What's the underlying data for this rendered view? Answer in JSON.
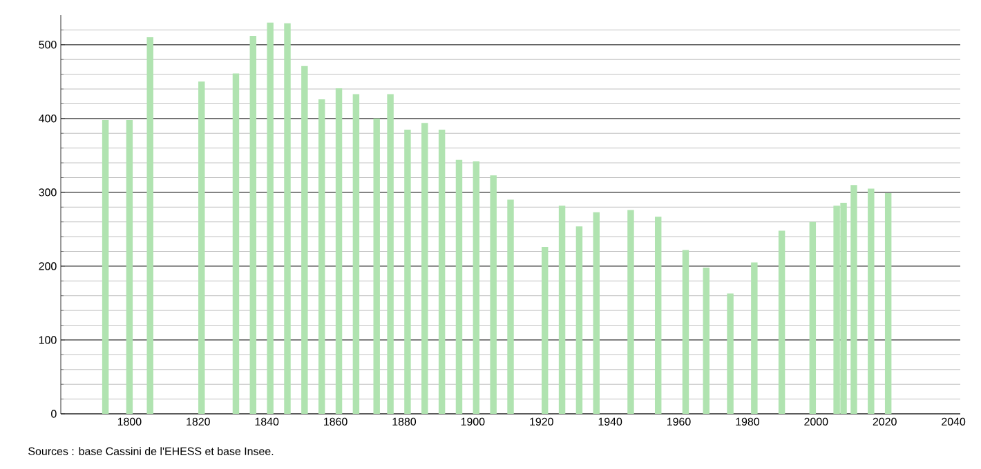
{
  "chart_data": {
    "type": "bar",
    "x": [
      1793,
      1800,
      1806,
      1821,
      1831,
      1836,
      1841,
      1846,
      1851,
      1856,
      1861,
      1866,
      1872,
      1876,
      1881,
      1886,
      1891,
      1896,
      1901,
      1906,
      1911,
      1921,
      1926,
      1931,
      1936,
      1946,
      1954,
      1962,
      1968,
      1975,
      1982,
      1990,
      1999,
      2006,
      2008,
      2011,
      2016,
      2021
    ],
    "values": [
      398,
      398,
      510,
      450,
      461,
      512,
      530,
      529,
      471,
      426,
      441,
      433,
      400,
      433,
      385,
      394,
      385,
      344,
      342,
      323,
      290,
      226,
      282,
      254,
      273,
      276,
      267,
      222,
      198,
      163,
      205,
      248,
      260,
      282,
      286,
      310,
      305,
      299
    ],
    "color": "#b0e3b0",
    "xlim": [
      1780,
      2042
    ],
    "xticks": [
      1800,
      1820,
      1840,
      1860,
      1880,
      1900,
      1920,
      1940,
      1960,
      1980,
      2000,
      2020,
      2040
    ],
    "ylim": [
      0,
      540
    ],
    "yticks": [
      0,
      {
        "value": 20,
        "label": null
      },
      {
        "value": 40,
        "label": null
      },
      {
        "value": 60,
        "label": null
      },
      {
        "value": 80,
        "label": null
      },
      100,
      {
        "value": 120,
        "label": null
      },
      {
        "value": 140,
        "label": null
      },
      {
        "value": 160,
        "label": null
      },
      {
        "value": 180,
        "label": null
      },
      200,
      {
        "value": 220,
        "label": null
      },
      {
        "value": 240,
        "label": null
      },
      {
        "value": 260,
        "label": null
      },
      {
        "value": 280,
        "label": null
      },
      300,
      {
        "value": 320,
        "label": null
      },
      {
        "value": 340,
        "label": null
      },
      {
        "value": 360,
        "label": null
      },
      {
        "value": 380,
        "label": null
      },
      400,
      {
        "value": 420,
        "label": null
      },
      {
        "value": 440,
        "label": null
      },
      {
        "value": 460,
        "label": null
      },
      {
        "value": 480,
        "label": null
      },
      500,
      {
        "value": 520,
        "label": null
      }
    ],
    "grid": "y",
    "annotations": [
      "Sources : base Cassini de l'EHESS et base Insee."
    ]
  }
}
